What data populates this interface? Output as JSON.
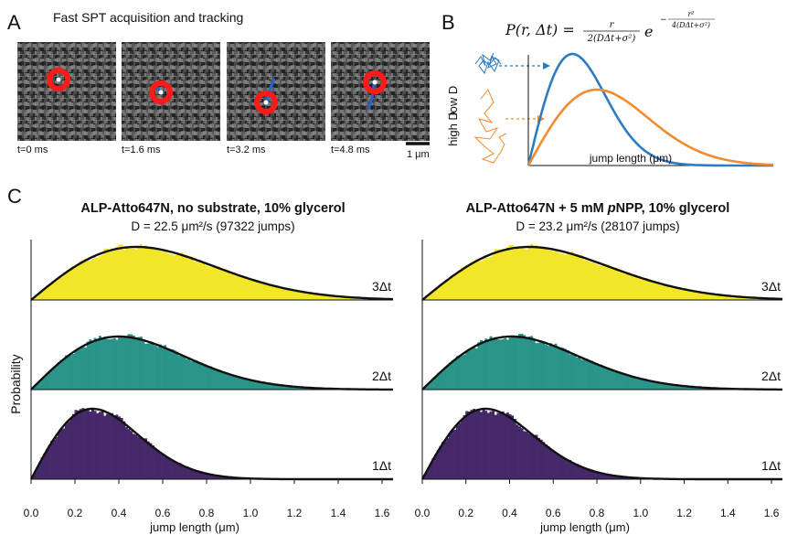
{
  "panelA": {
    "label": "A",
    "title": "Fast SPT acquisition and tracking",
    "frames": [
      "t=0 ms",
      "t=1.6 ms",
      "t=3.2 ms",
      "t=4.8 ms"
    ],
    "scalebar": "1 μm"
  },
  "panelB": {
    "label": "B",
    "equation": "P(r,Δt) = r / (2(DΔt+σ²)) · e^(−r²/(4(DΔt+σ²)))",
    "eq_lhs": "P(r, Δt) =",
    "eq_num": "r",
    "eq_den": "2(DΔt+σ²)",
    "eq_e": "e",
    "eq_exp_num": "r²",
    "eq_exp_den": "4(DΔt+σ²)",
    "low_label": "low D",
    "high_label": "high D",
    "xlabel": "jump length (μm)",
    "colors": {
      "low": "#2f7bbf",
      "high": "#f28a2e"
    }
  },
  "panelC": {
    "label": "C",
    "ylabel": "Probability",
    "xlabel": "jump length (μm)",
    "lag_labels": [
      "3Δt",
      "2Δt",
      "1Δt"
    ],
    "colors": {
      "3": "#f2e629",
      "2": "#2b9488",
      "1": "#452868"
    }
  },
  "chart_data": [
    {
      "type": "bar",
      "title": "ALP-Atto647N, no substrate, 10% glycerol",
      "subtitle": "D = 22.5 μm²/s (97322 jumps)",
      "xlabel": "jump length (μm)",
      "ylabel": "Probability",
      "xlim": [
        0.0,
        1.65
      ],
      "xticks": [
        "0.0",
        "0.2",
        "0.4",
        "0.6",
        "0.8",
        "1.0",
        "1.2",
        "1.4",
        "1.6"
      ],
      "series": [
        {
          "name": "3Δt",
          "peak": 0.48
        },
        {
          "name": "2Δt",
          "peak": 0.4
        },
        {
          "name": "1Δt",
          "peak": 0.28
        }
      ]
    },
    {
      "type": "bar",
      "title": "ALP-Atto647N + 5 mM pNPP, 10% glycerol",
      "title_pre": "ALP-Atto647N + 5 mM ",
      "title_italic": "p",
      "title_post": "NPP, 10% glycerol",
      "subtitle": "D = 23.2 μm²/s (28107 jumps)",
      "xlabel": "jump length (μm)",
      "ylabel": "Probability",
      "xlim": [
        0.0,
        1.65
      ],
      "xticks": [
        "0.0",
        "0.2",
        "0.4",
        "0.6",
        "0.8",
        "1.0",
        "1.2",
        "1.4",
        "1.6"
      ],
      "series": [
        {
          "name": "3Δt",
          "peak": 0.49
        },
        {
          "name": "2Δt",
          "peak": 0.41
        },
        {
          "name": "1Δt",
          "peak": 0.29
        }
      ]
    }
  ]
}
